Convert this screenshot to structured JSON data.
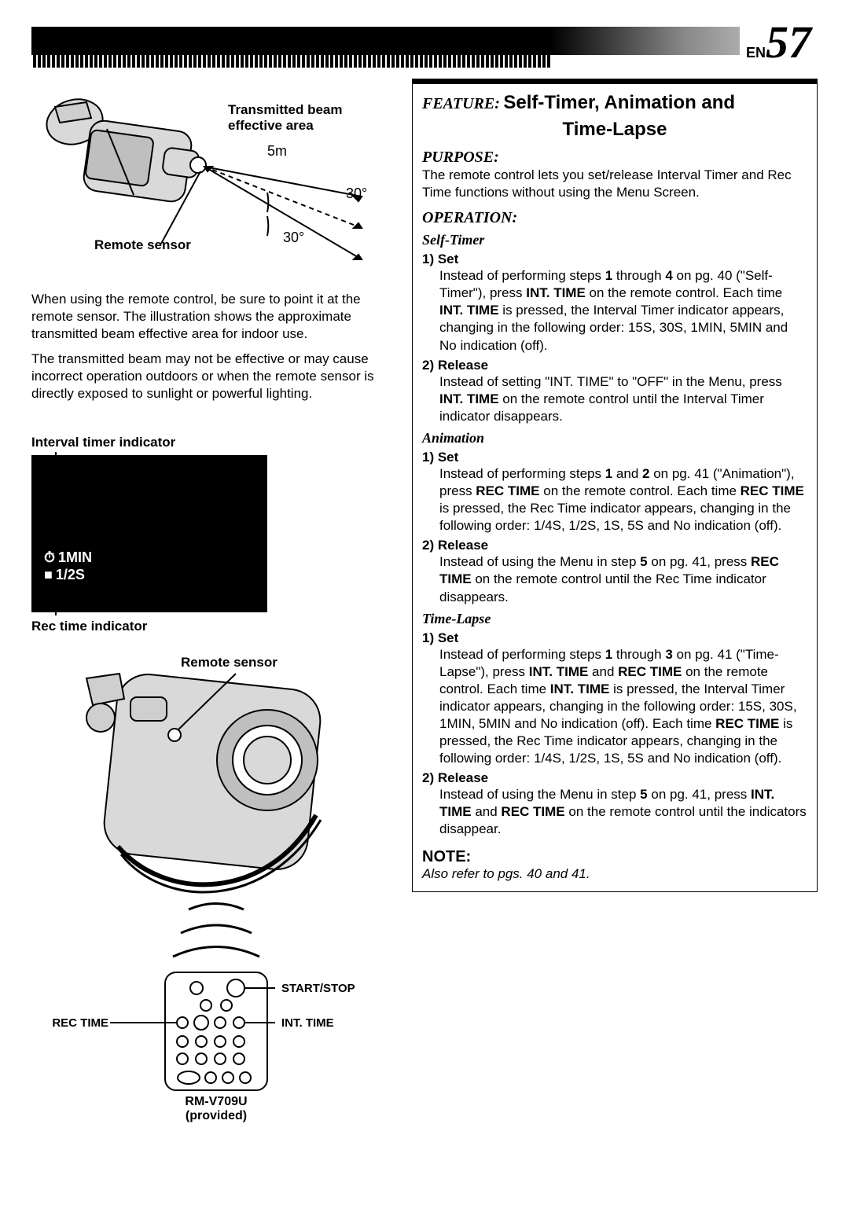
{
  "page": {
    "lang_prefix": "EN",
    "number": "57"
  },
  "diagram1": {
    "beam_label_l1": "Transmitted beam",
    "beam_label_l2": "effective area",
    "distance": "5m",
    "angle_upper": "30°",
    "angle_lower": "30°",
    "remote_sensor_label": "Remote sensor",
    "camcorder_fill": "#d9d9d9",
    "camcorder_stroke": "#000000",
    "beam_stroke": "#000000"
  },
  "left_text": {
    "p1": "When using the remote control, be sure to point it at the remote sensor. The illustration shows the approximate transmitted beam effective area for indoor use.",
    "p2": "The transmitted beam may not be effective or may cause incorrect operation outdoors or when the remote sensor is directly exposed to sunlight or powerful lighting."
  },
  "indicator": {
    "top_label": "Interval timer indicator",
    "bottom_label": "Rec time indicator",
    "line1_icon": "⏱",
    "line1_text": "1MIN",
    "line2_icon": "■",
    "line2_text": "1/2S",
    "screen_bg": "#000000",
    "screen_fg": "#ffffff"
  },
  "diagram2": {
    "remote_sensor_label": "Remote sensor",
    "start_stop": "START/STOP",
    "rec_time": "REC TIME",
    "int_time": "INT. TIME",
    "remote_model_l1": "RM-V709U",
    "remote_model_l2": "(provided)",
    "camcorder_fill": "#d9d9d9",
    "waves_stroke": "#000000"
  },
  "feature": {
    "label": "FEATURE:",
    "title1": "Self-Timer, Animation and",
    "title2": "Time-Lapse",
    "purpose_head": "PURPOSE:",
    "purpose_body": "The remote control lets you set/release Interval Timer and Rec Time functions without using the Menu Screen.",
    "operation_head": "OPERATION:",
    "sections": {
      "self_timer": {
        "head": "Self-Timer",
        "step1_h": "1) Set",
        "step1_b": "Instead of performing steps <b>1</b> through <b>4</b> on pg. 40 (\"Self-Timer\"), press <b>INT. TIME</b> on the remote control. Each time <b>INT. TIME</b> is pressed, the Interval Timer indicator appears, changing in the following order: 15S, 30S, 1MIN, 5MIN and No indication (off).",
        "step2_h": "2) Release",
        "step2_b": "Instead of setting \"INT. TIME\" to \"OFF\" in the Menu, press <b>INT. TIME</b> on the remote control until the Interval Timer indicator disappears."
      },
      "animation": {
        "head": "Animation",
        "step1_h": "1) Set",
        "step1_b": "Instead of performing steps <b>1</b> and <b>2</b> on pg. 41 (\"Animation\"), press <b>REC TIME</b> on the remote control. Each time <b>REC TIME</b> is pressed, the Rec Time indicator appears, changing in the following order: 1/4S, 1/2S, 1S, 5S and No indication (off).",
        "step2_h": "2) Release",
        "step2_b": "Instead of using the Menu in step <b>5</b> on pg. 41, press <b>REC TIME</b> on the remote control until the Rec Time indicator disappears."
      },
      "time_lapse": {
        "head": "Time-Lapse",
        "step1_h": "1) Set",
        "step1_b": "Instead of performing steps <b>1</b> through <b>3</b> on pg. 41 (\"Time-Lapse\"), press <b>INT. TIME</b> and <b>REC TIME</b> on the remote control. Each time <b>INT. TIME</b> is pressed, the Interval Timer indicator appears, changing in the following order: 15S, 30S, 1MIN, 5MIN and No indication (off). Each time <b>REC TIME</b> is pressed, the Rec Time indicator appears, changing in the following order: 1/4S, 1/2S, 1S, 5S and No indication (off).",
        "step2_h": "2) Release",
        "step2_b": "Instead of using the Menu in step <b>5</b> on pg. 41, press <b>INT. TIME</b> and <b>REC TIME</b> on the remote control until the indicators disappear."
      }
    },
    "note_head": "NOTE:",
    "note_body": "Also refer to pgs. 40 and 41."
  }
}
